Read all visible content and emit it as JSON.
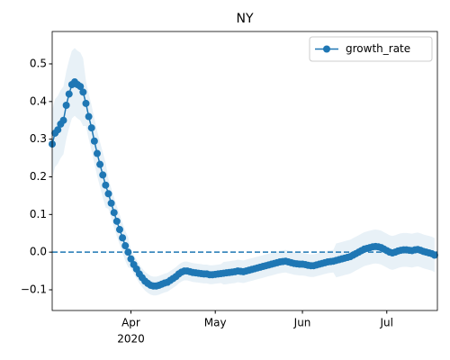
{
  "chart_data": {
    "type": "line",
    "title": "NY",
    "xlim": [
      0,
      137
    ],
    "xticks": [
      {
        "value": 28,
        "label": "Apr"
      },
      {
        "value": 58,
        "label": "May"
      },
      {
        "value": 89,
        "label": "Jun"
      },
      {
        "value": 119,
        "label": "Jul"
      }
    ],
    "xtick_sublabel": "2020",
    "ylim": [
      -0.155,
      0.586
    ],
    "yticks": [
      {
        "value": -0.1,
        "label": "−0.1"
      },
      {
        "value": 0,
        "label": "0.0"
      },
      0.1,
      0.2,
      0.3,
      0.4,
      0.5
    ],
    "hline": 0,
    "legend": "upper right",
    "series": [
      {
        "name": "growth_rate",
        "color": "#1f77b4",
        "values": [
          0.287,
          0.316,
          0.325,
          0.34,
          0.35,
          0.39,
          0.42,
          0.445,
          0.452,
          0.445,
          0.44,
          0.425,
          0.395,
          0.36,
          0.33,
          0.295,
          0.262,
          0.233,
          0.205,
          0.178,
          0.155,
          0.13,
          0.105,
          0.082,
          0.06,
          0.038,
          0.017,
          0,
          -0.018,
          -0.033,
          -0.045,
          -0.058,
          -0.068,
          -0.077,
          -0.083,
          -0.088,
          -0.09,
          -0.09,
          -0.088,
          -0.085,
          -0.082,
          -0.08,
          -0.075,
          -0.07,
          -0.065,
          -0.058,
          -0.053,
          -0.05,
          -0.05,
          -0.052,
          -0.054,
          -0.055,
          -0.056,
          -0.057,
          -0.058,
          -0.058,
          -0.06,
          -0.06,
          -0.059,
          -0.058,
          -0.057,
          -0.056,
          -0.055,
          -0.054,
          -0.053,
          -0.052,
          -0.05,
          -0.051,
          -0.052,
          -0.05,
          -0.048,
          -0.046,
          -0.044,
          -0.042,
          -0.04,
          -0.038,
          -0.036,
          -0.034,
          -0.032,
          -0.03,
          -0.028,
          -0.026,
          -0.025,
          -0.024,
          -0.026,
          -0.028,
          -0.03,
          -0.031,
          -0.032,
          -0.032,
          -0.033,
          -0.035,
          -0.036,
          -0.036,
          -0.034,
          -0.032,
          -0.03,
          -0.028,
          -0.026,
          -0.025,
          -0.024,
          -0.022,
          -0.02,
          -0.018,
          -0.016,
          -0.014,
          -0.012,
          -0.008,
          -0.004,
          0,
          0.004,
          0.008,
          0.01,
          0.012,
          0.014,
          0.015,
          0.014,
          0.012,
          0.008,
          0.004,
          0,
          -0.002,
          0,
          0.003,
          0.005,
          0.006,
          0.006,
          0.005,
          0.004,
          0.006,
          0.007,
          0.005,
          0.002,
          0,
          -0.002,
          -0.004,
          -0.008
        ],
        "upper": [
          0.377,
          0.406,
          0.415,
          0.43,
          0.44,
          0.48,
          0.51,
          0.535,
          0.542,
          0.535,
          0.53,
          0.515,
          0.455,
          0.42,
          0.39,
          0.355,
          0.322,
          0.293,
          0.265,
          0.238,
          0.195,
          0.17,
          0.145,
          0.122,
          0.1,
          0.078,
          0.057,
          0.04,
          0.007,
          -0.008,
          -0.02,
          -0.033,
          -0.043,
          -0.052,
          -0.058,
          -0.063,
          -0.065,
          -0.065,
          -0.063,
          -0.06,
          -0.057,
          -0.055,
          -0.05,
          -0.045,
          -0.04,
          -0.033,
          -0.028,
          -0.025,
          -0.025,
          -0.027,
          -0.029,
          -0.03,
          -0.031,
          -0.032,
          -0.033,
          -0.033,
          -0.035,
          -0.035,
          -0.034,
          -0.033,
          -0.032,
          -0.026,
          -0.025,
          -0.024,
          -0.023,
          -0.022,
          -0.02,
          -0.021,
          -0.022,
          -0.02,
          -0.018,
          -0.016,
          -0.014,
          -0.012,
          -0.01,
          -0.008,
          -0.006,
          -0.004,
          -0.002,
          0,
          0.002,
          0.004,
          0.005,
          0.006,
          0.004,
          0.002,
          0,
          -0.001,
          -0.002,
          -0.002,
          -0.003,
          -0.005,
          -0.006,
          -0.006,
          -0.004,
          -0.002,
          0,
          0.002,
          0.004,
          0.005,
          0.006,
          0.023,
          0.025,
          0.027,
          0.029,
          0.031,
          0.033,
          0.037,
          0.041,
          0.045,
          0.049,
          0.053,
          0.055,
          0.057,
          0.059,
          0.06,
          0.059,
          0.057,
          0.053,
          0.049,
          0.045,
          0.043,
          0.045,
          0.048,
          0.05,
          0.051,
          0.051,
          0.05,
          0.049,
          0.051,
          0.052,
          0.05,
          0.047,
          0.045,
          0.043,
          0.041,
          0.037
        ],
        "lower": [
          0.197,
          0.226,
          0.235,
          0.25,
          0.26,
          0.3,
          0.33,
          0.355,
          0.362,
          0.355,
          0.35,
          0.335,
          0.335,
          0.3,
          0.27,
          0.235,
          0.202,
          0.173,
          0.145,
          0.118,
          0.115,
          0.09,
          0.065,
          0.042,
          0.02,
          -0.002,
          -0.023,
          -0.04,
          -0.043,
          -0.058,
          -0.07,
          -0.083,
          -0.093,
          -0.102,
          -0.108,
          -0.113,
          -0.115,
          -0.115,
          -0.113,
          -0.11,
          -0.107,
          -0.105,
          -0.1,
          -0.095,
          -0.09,
          -0.083,
          -0.078,
          -0.075,
          -0.075,
          -0.077,
          -0.079,
          -0.08,
          -0.081,
          -0.082,
          -0.083,
          -0.083,
          -0.085,
          -0.085,
          -0.084,
          -0.083,
          -0.082,
          -0.086,
          -0.085,
          -0.084,
          -0.083,
          -0.082,
          -0.08,
          -0.081,
          -0.082,
          -0.08,
          -0.078,
          -0.076,
          -0.074,
          -0.072,
          -0.07,
          -0.068,
          -0.066,
          -0.064,
          -0.062,
          -0.06,
          -0.058,
          -0.056,
          -0.055,
          -0.054,
          -0.056,
          -0.058,
          -0.06,
          -0.061,
          -0.062,
          -0.062,
          -0.063,
          -0.065,
          -0.066,
          -0.066,
          -0.064,
          -0.062,
          -0.06,
          -0.058,
          -0.056,
          -0.055,
          -0.054,
          -0.067,
          -0.065,
          -0.063,
          -0.061,
          -0.059,
          -0.057,
          -0.053,
          -0.049,
          -0.045,
          -0.041,
          -0.037,
          -0.035,
          -0.033,
          -0.031,
          -0.03,
          -0.031,
          -0.033,
          -0.037,
          -0.041,
          -0.045,
          -0.047,
          -0.045,
          -0.042,
          -0.04,
          -0.039,
          -0.039,
          -0.04,
          -0.041,
          -0.039,
          -0.038,
          -0.04,
          -0.043,
          -0.045,
          -0.047,
          -0.049,
          -0.053
        ]
      }
    ]
  }
}
